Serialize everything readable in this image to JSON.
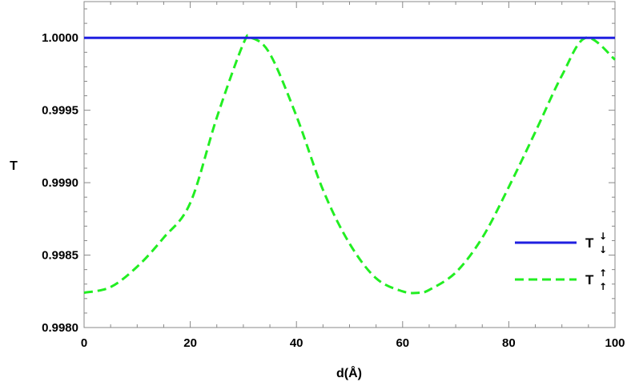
{
  "chart_data": {
    "type": "line",
    "xlabel": "d(Å)",
    "ylabel": "T",
    "xlim": [
      0,
      100
    ],
    "ylim": [
      0.998,
      1.00025
    ],
    "xticks": [
      0,
      20,
      40,
      60,
      80,
      100
    ],
    "xtick_labels": [
      "0",
      "20",
      "40",
      "60",
      "80",
      "100"
    ],
    "yticks": [
      0.998,
      0.9985,
      0.999,
      0.9995,
      1.0
    ],
    "ytick_labels": [
      "0.9980",
      "0.9985",
      "0.9990",
      "0.9995",
      "1.0000"
    ],
    "grid": false,
    "legend_position": "right",
    "series": [
      {
        "name": "T↓↓",
        "legend_base": "T",
        "legend_arrows": [
          "↓",
          "↓"
        ],
        "color": "#1f1fe0",
        "style": "solid",
        "x": [
          0,
          100
        ],
        "y": [
          1.0,
          1.0
        ]
      },
      {
        "name": "T↑↑",
        "legend_base": "T",
        "legend_arrows": [
          "↑",
          "↑"
        ],
        "color": "#22ee22",
        "style": "dashed",
        "x": [
          0,
          5,
          10,
          15,
          20,
          25,
          30,
          31.5,
          35,
          40,
          45,
          50,
          55,
          60,
          63,
          65,
          70,
          75,
          80,
          85,
          90,
          94.5,
          100
        ],
        "y": [
          0.99824,
          0.99828,
          0.99842,
          0.99862,
          0.99886,
          0.99945,
          0.99996,
          1.0,
          0.99989,
          0.99946,
          0.99895,
          0.99858,
          0.99834,
          0.99825,
          0.99824,
          0.99826,
          0.99838,
          0.99862,
          0.99897,
          0.99935,
          0.99974,
          1.0,
          0.99985
        ]
      }
    ]
  }
}
